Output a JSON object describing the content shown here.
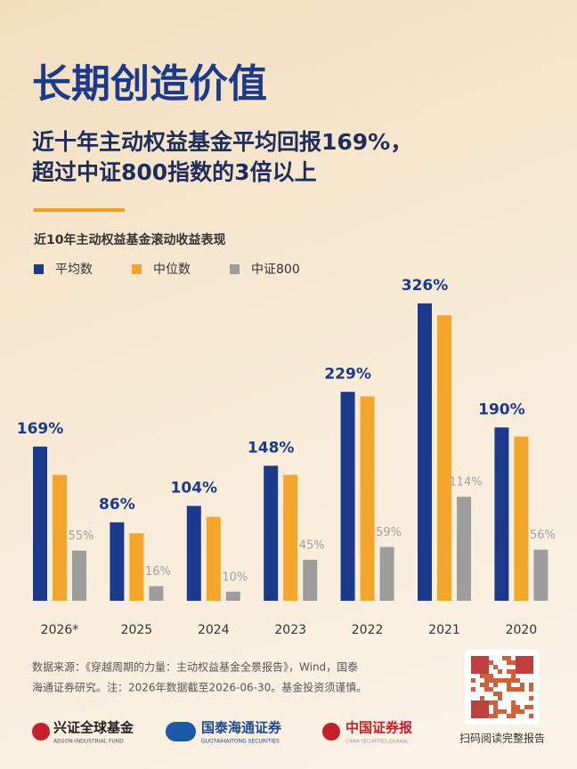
{
  "page": {
    "title": "长期创造价值",
    "subtitle": [
      "近十年主动权益基金平均回报169%，",
      "超过中证800指数的3倍以上"
    ],
    "source": [
      "数据来源：《穿越周期的力量：主动权益基金全景报告》，Wind，国泰",
      "海通证券研究。注：2026年数据截至2026-06-30。基金投资须谨慎。"
    ],
    "logos": [
      {
        "name": "兴证全球基金",
        "sub": "AEGON-INDUSTRIAL FUND"
      },
      {
        "name": "国泰海通证券",
        "sub": "GUOTAIHAITONG SECURITIES"
      },
      {
        "name": "中国证券报",
        "sub": "CHINA SECURITIES JOURNAL"
      }
    ],
    "qr_caption": "扫码阅读完整报告"
  },
  "chart_data": {
    "type": "bar",
    "title": "近10年主动权益基金滚动收益表现",
    "categories": [
      "2026*",
      "2025",
      "2024",
      "2023",
      "2022",
      "2021",
      "2020"
    ],
    "series": [
      {
        "name": "平均数",
        "color": "#1b3a8c",
        "values": [
          169,
          86,
          104,
          148,
          229,
          326,
          190
        ],
        "value_labels": [
          "169%",
          "86%",
          "104%",
          "148%",
          "229%",
          "326%",
          "190%"
        ]
      },
      {
        "name": "中位数",
        "color": "#f4a52a",
        "values": [
          138,
          74,
          92,
          138,
          224,
          313,
          180
        ]
      },
      {
        "name": "中证800",
        "color": "#9d9d9d",
        "values": [
          55,
          16,
          10,
          45,
          59,
          114,
          56
        ],
        "value_labels": [
          "55%",
          "16%",
          "10%",
          "45%",
          "59%",
          "114%",
          "56%"
        ]
      }
    ]
  }
}
